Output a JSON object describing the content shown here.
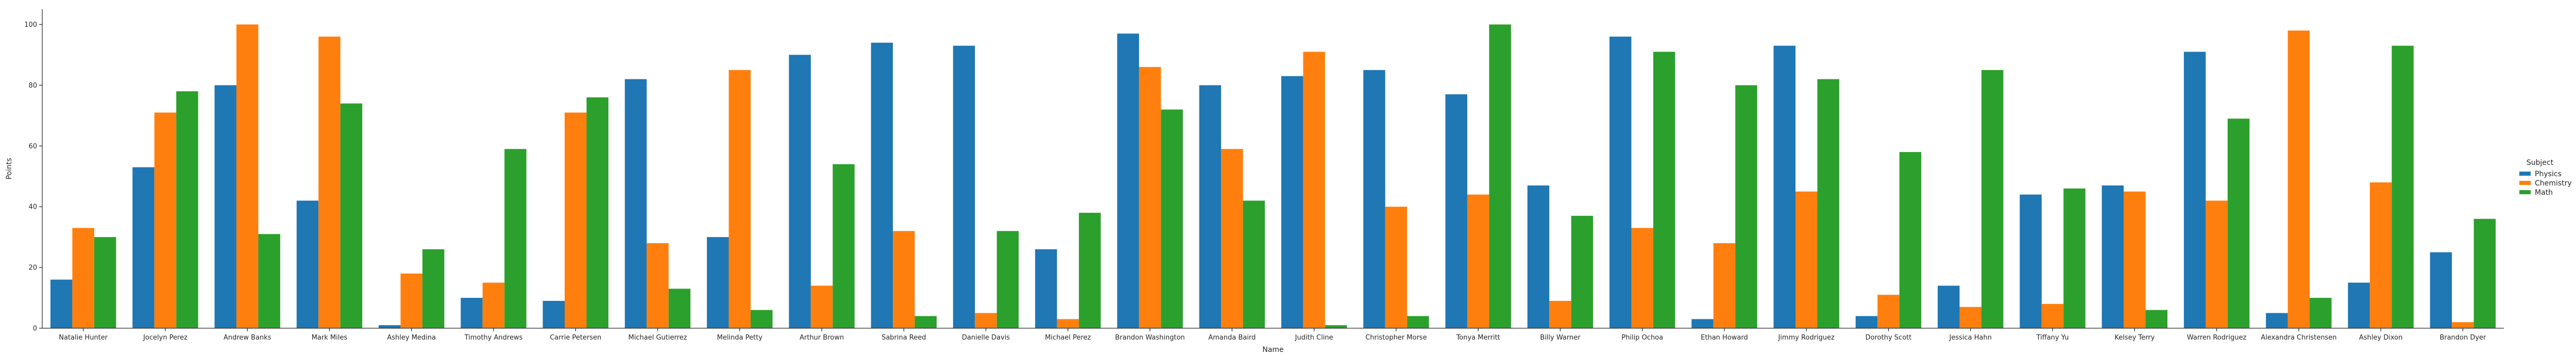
{
  "chart_data": {
    "type": "bar",
    "xlabel": "Name",
    "ylabel": "Points",
    "ylim": [
      0,
      105
    ],
    "yticks": [
      0,
      20,
      40,
      60,
      80,
      100
    ],
    "grid": false,
    "legend": {
      "title": "Subject",
      "placement": "right"
    },
    "categories": [
      "Natalie Hunter",
      "Jocelyn Perez",
      "Andrew Banks",
      "Mark Miles",
      "Ashley Medina",
      "Timothy Andrews",
      "Carrie Petersen",
      "Michael Gutierrez",
      "Melinda Petty",
      "Arthur Brown",
      "Sabrina Reed",
      "Danielle Davis",
      "Michael Perez",
      "Brandon Washington",
      "Amanda Baird",
      "Judith Cline",
      "Christopher Morse",
      "Tonya Merritt",
      "Billy Warner",
      "Philip Ochoa",
      "Ethan Howard",
      "Jimmy Rodriguez",
      "Dorothy Scott",
      "Jessica Hahn",
      "Tiffany Yu",
      "Kelsey Terry",
      "Warren Rodriguez",
      "Alexandra Christensen",
      "Ashley Dixon",
      "Brandon Dyer"
    ],
    "series": [
      {
        "name": "Physics",
        "color": "#1f77b4",
        "values": [
          16,
          53,
          80,
          42,
          1,
          10,
          9,
          82,
          30,
          90,
          94,
          93,
          26,
          97,
          80,
          83,
          85,
          77,
          47,
          96,
          3,
          93,
          4,
          14,
          44,
          47,
          91,
          5,
          15,
          25
        ]
      },
      {
        "name": "Chemistry",
        "color": "#ff7f0e",
        "values": [
          33,
          71,
          100,
          96,
          18,
          15,
          71,
          28,
          85,
          14,
          32,
          5,
          3,
          86,
          59,
          91,
          40,
          44,
          9,
          33,
          28,
          45,
          11,
          7,
          8,
          45,
          42,
          98,
          48,
          2
        ]
      },
      {
        "name": "Math",
        "color": "#2ca02c",
        "values": [
          30,
          78,
          31,
          74,
          26,
          59,
          76,
          13,
          6,
          54,
          4,
          32,
          38,
          72,
          42,
          1,
          4,
          100,
          37,
          91,
          80,
          82,
          58,
          85,
          46,
          6,
          69,
          10,
          93,
          36
        ]
      }
    ]
  }
}
